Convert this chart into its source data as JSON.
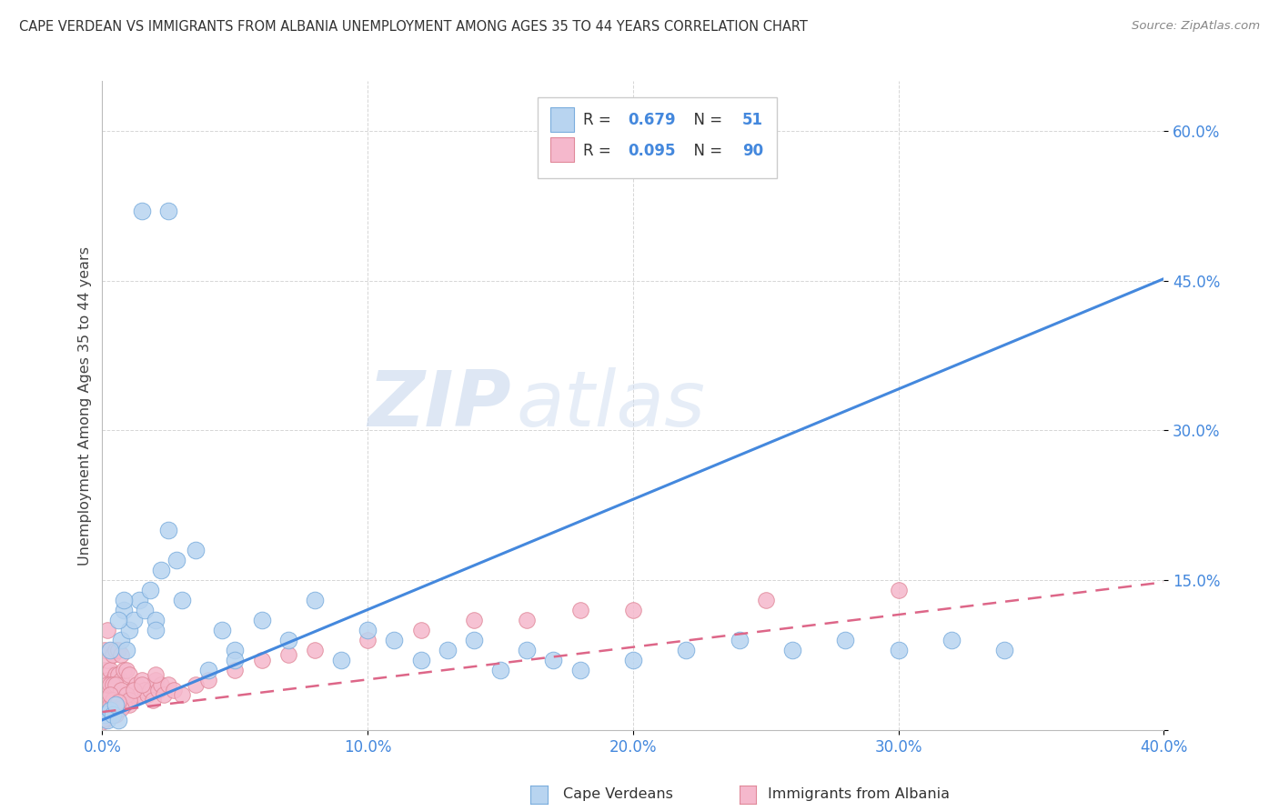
{
  "title": "CAPE VERDEAN VS IMMIGRANTS FROM ALBANIA UNEMPLOYMENT AMONG AGES 35 TO 44 YEARS CORRELATION CHART",
  "source": "Source: ZipAtlas.com",
  "ylabel": "Unemployment Among Ages 35 to 44 years",
  "xlim": [
    0,
    0.4
  ],
  "ylim": [
    0,
    0.65
  ],
  "xticks": [
    0.0,
    0.1,
    0.2,
    0.3,
    0.4
  ],
  "xtick_labels": [
    "0.0%",
    "10.0%",
    "20.0%",
    "30.0%",
    "40.0%"
  ],
  "yticks": [
    0.0,
    0.15,
    0.3,
    0.45,
    0.6
  ],
  "ytick_labels": [
    "",
    "15.0%",
    "30.0%",
    "45.0%",
    "60.0%"
  ],
  "cape_verdean_color": "#b8d4f0",
  "cape_verdean_edge": "#7aaddd",
  "albania_color": "#f5b8cc",
  "albania_edge": "#e08899",
  "line_blue": "#4488dd",
  "line_pink": "#dd6688",
  "R_blue": 0.679,
  "N_blue": 51,
  "R_pink": 0.095,
  "N_pink": 90,
  "watermark_zip": "ZIP",
  "watermark_atlas": "atlas",
  "background_color": "#ffffff",
  "grid_color": "#cccccc",
  "blue_line_x0": 0.0,
  "blue_line_y0": 0.01,
  "blue_line_x1": 0.4,
  "blue_line_y1": 0.452,
  "pink_line_x0": 0.0,
  "pink_line_y0": 0.018,
  "pink_line_x1": 0.4,
  "pink_line_y1": 0.148,
  "blue_scatter_x": [
    0.001,
    0.002,
    0.003,
    0.004,
    0.005,
    0.006,
    0.007,
    0.008,
    0.009,
    0.01,
    0.012,
    0.014,
    0.016,
    0.018,
    0.02,
    0.022,
    0.025,
    0.028,
    0.03,
    0.035,
    0.04,
    0.045,
    0.05,
    0.06,
    0.07,
    0.08,
    0.09,
    0.1,
    0.11,
    0.12,
    0.13,
    0.14,
    0.15,
    0.16,
    0.17,
    0.18,
    0.2,
    0.22,
    0.24,
    0.26,
    0.28,
    0.3,
    0.32,
    0.34,
    0.025,
    0.015,
    0.008,
    0.003,
    0.006,
    0.02,
    0.05
  ],
  "blue_scatter_y": [
    0.015,
    0.01,
    0.02,
    0.015,
    0.025,
    0.01,
    0.09,
    0.12,
    0.08,
    0.1,
    0.11,
    0.13,
    0.12,
    0.14,
    0.11,
    0.16,
    0.2,
    0.17,
    0.13,
    0.18,
    0.06,
    0.1,
    0.08,
    0.11,
    0.09,
    0.13,
    0.07,
    0.1,
    0.09,
    0.07,
    0.08,
    0.09,
    0.06,
    0.08,
    0.07,
    0.06,
    0.07,
    0.08,
    0.09,
    0.08,
    0.09,
    0.08,
    0.09,
    0.08,
    0.52,
    0.52,
    0.13,
    0.08,
    0.11,
    0.1,
    0.07
  ],
  "pink_scatter_x": [
    0.0,
    0.0,
    0.001,
    0.001,
    0.001,
    0.002,
    0.002,
    0.002,
    0.002,
    0.003,
    0.003,
    0.003,
    0.004,
    0.004,
    0.004,
    0.005,
    0.005,
    0.005,
    0.006,
    0.006,
    0.006,
    0.007,
    0.007,
    0.007,
    0.008,
    0.008,
    0.009,
    0.009,
    0.01,
    0.01,
    0.011,
    0.012,
    0.013,
    0.014,
    0.015,
    0.016,
    0.017,
    0.018,
    0.019,
    0.02,
    0.021,
    0.022,
    0.023,
    0.025,
    0.027,
    0.03,
    0.035,
    0.04,
    0.05,
    0.06,
    0.07,
    0.08,
    0.1,
    0.12,
    0.14,
    0.16,
    0.18,
    0.2,
    0.25,
    0.3,
    0.0,
    0.001,
    0.001,
    0.002,
    0.002,
    0.003,
    0.003,
    0.004,
    0.004,
    0.005,
    0.005,
    0.006,
    0.007,
    0.008,
    0.009,
    0.01,
    0.012,
    0.015,
    0.02,
    0.001,
    0.002,
    0.003,
    0.004,
    0.0,
    0.001,
    0.002,
    0.005,
    0.007,
    0.003,
    0.006
  ],
  "pink_scatter_y": [
    0.02,
    0.04,
    0.025,
    0.06,
    0.08,
    0.03,
    0.05,
    0.07,
    0.1,
    0.04,
    0.06,
    0.08,
    0.025,
    0.05,
    0.075,
    0.03,
    0.055,
    0.08,
    0.03,
    0.055,
    0.08,
    0.025,
    0.05,
    0.075,
    0.03,
    0.06,
    0.03,
    0.06,
    0.025,
    0.055,
    0.04,
    0.035,
    0.045,
    0.035,
    0.05,
    0.04,
    0.035,
    0.04,
    0.03,
    0.05,
    0.04,
    0.045,
    0.035,
    0.045,
    0.04,
    0.035,
    0.045,
    0.05,
    0.06,
    0.07,
    0.075,
    0.08,
    0.09,
    0.1,
    0.11,
    0.11,
    0.12,
    0.12,
    0.13,
    0.14,
    0.015,
    0.02,
    0.035,
    0.02,
    0.045,
    0.02,
    0.045,
    0.02,
    0.045,
    0.02,
    0.045,
    0.02,
    0.04,
    0.025,
    0.035,
    0.03,
    0.04,
    0.045,
    0.055,
    0.01,
    0.015,
    0.025,
    0.03,
    0.008,
    0.012,
    0.018,
    0.015,
    0.022,
    0.035,
    0.028
  ]
}
